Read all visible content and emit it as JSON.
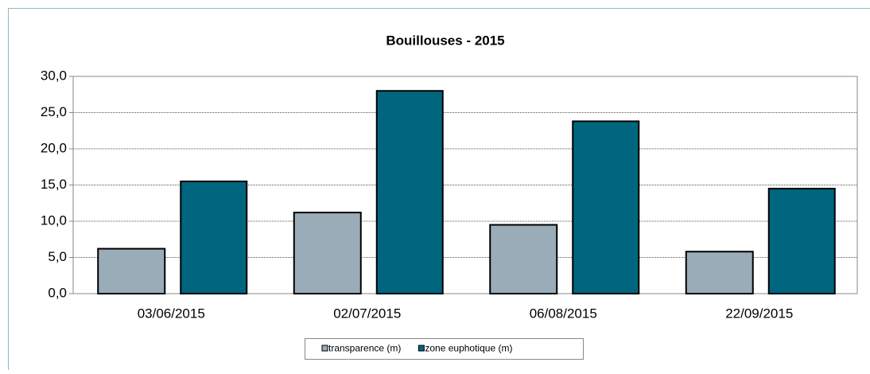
{
  "chart_data": {
    "type": "bar",
    "title": "Bouillouses - 2015",
    "categories": [
      "03/06/2015",
      "02/07/2015",
      "06/08/2015",
      "22/09/2015"
    ],
    "series": [
      {
        "name": "transparence (m)",
        "color": "#9aacb8",
        "values": [
          6.2,
          11.2,
          9.5,
          5.8
        ]
      },
      {
        "name": "zone euphotique (m)",
        "color": "#006680",
        "values": [
          15.5,
          28.0,
          23.8,
          14.5
        ]
      }
    ],
    "ylim": [
      0,
      30
    ],
    "yticks": [
      {
        "value": 0,
        "label": "0,0"
      },
      {
        "value": 5,
        "label": "5,0"
      },
      {
        "value": 10,
        "label": "10,0"
      },
      {
        "value": 15,
        "label": "15,0"
      },
      {
        "value": 20,
        "label": "20,0"
      },
      {
        "value": 25,
        "label": "25,0"
      },
      {
        "value": 30,
        "label": "30,0"
      }
    ],
    "grid": true,
    "legend": "bottom"
  }
}
